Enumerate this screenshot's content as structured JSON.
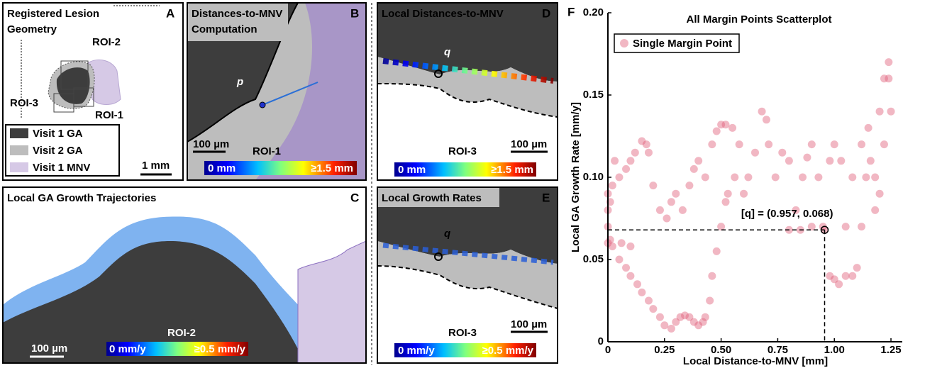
{
  "panels": {
    "a": {
      "letter": "A",
      "title_lines": [
        "Registered Lesion",
        "Geometry"
      ],
      "roi_labels": [
        "ROI-2",
        "ROI-3",
        "ROI-1"
      ],
      "legend": [
        "Visit 1 GA",
        "Visit 2 GA",
        "Visit 1 MNV"
      ],
      "scale": "1 mm"
    },
    "b": {
      "letter": "B",
      "title_lines": [
        "Distances-to-MNV",
        "Computation"
      ],
      "point": "p",
      "scale": "100 µm",
      "roi": "ROI-1",
      "colorbar": [
        "0 mm",
        "≥1.5 mm"
      ]
    },
    "c": {
      "letter": "C",
      "title": "Local GA Growth Trajectories",
      "roi": "ROI-2",
      "scale": "100 µm",
      "colorbar": [
        "0 mm/y",
        "≥0.5 mm/y"
      ]
    },
    "d": {
      "letter": "D",
      "title": "Local Distances-to-MNV",
      "point": "q",
      "scale": "100 µm",
      "roi": "ROI-3",
      "colorbar": [
        "0 mm",
        "≥1.5 mm"
      ]
    },
    "e": {
      "letter": "E",
      "title": "Local Growth Rates",
      "point": "q",
      "scale": "100 µm",
      "roi": "ROI-3",
      "colorbar": [
        "0 mm/y",
        "≥0.5 mm/y"
      ]
    },
    "f": {
      "letter": "F"
    }
  },
  "chart_data": {
    "type": "scatter",
    "title": "All Margin Points Scatterplot",
    "x_label": "Local Distance-to-MNV [mm]",
    "y_label": "Local GA Growth Rate [mm/y]",
    "xlim": [
      0,
      1.3
    ],
    "ylim": [
      0,
      0.2
    ],
    "xticks": [
      0,
      0.25,
      {
        "value": 0.5,
        "label": "0.50"
      },
      0.75,
      {
        "value": 1,
        "label": "1.00"
      },
      1.25
    ],
    "yticks": [
      0,
      0.05,
      {
        "value": 0.1,
        "label": "0.10"
      },
      0.15,
      {
        "value": 0.2,
        "label": "0.20"
      }
    ],
    "legend_position": "upper left",
    "x": [
      0.0,
      0.01,
      0.02,
      0.05,
      0.08,
      0.1,
      0.13,
      0.15,
      0.18,
      0.2,
      0.23,
      0.25,
      0.28,
      0.3,
      0.32,
      0.34,
      0.36,
      0.38,
      0.4,
      0.42,
      0.43,
      0.45,
      0.46,
      0.48,
      0.5,
      0.52,
      0.53,
      0.56,
      0.6,
      0.0,
      0.02,
      0.05,
      0.08,
      0.1,
      0.12,
      0.15,
      0.17,
      0.18,
      0.2,
      0.23,
      0.26,
      0.28,
      0.3,
      0.33,
      0.36,
      0.38,
      0.4,
      0.43,
      0.46,
      0.48,
      0.5,
      0.52,
      0.55,
      0.58,
      0.62,
      0.65,
      0.68,
      0.7,
      0.71,
      0.74,
      0.77,
      0.8,
      0.83,
      0.86,
      0.88,
      0.9,
      0.93,
      0.95,
      0.98,
      1.0,
      1.03,
      1.05,
      1.08,
      1.12,
      1.15,
      1.18,
      1.2,
      1.22,
      1.24,
      1.25,
      0.98,
      1.0,
      1.02,
      1.05,
      1.08,
      1.1,
      1.12,
      1.14,
      1.16,
      1.18,
      1.2,
      1.22,
      1.24,
      0.8,
      0.85,
      0.9,
      0.957,
      0.0,
      0.01,
      0.0,
      0.03,
      0.06,
      0.1
    ],
    "series": [
      {
        "name": "Single Margin Point",
        "color": "#e0607a",
        "values": [
          0.07,
          0.062,
          0.058,
          0.05,
          0.045,
          0.04,
          0.035,
          0.03,
          0.025,
          0.02,
          0.015,
          0.01,
          0.008,
          0.012,
          0.015,
          0.016,
          0.015,
          0.012,
          0.01,
          0.012,
          0.015,
          0.025,
          0.04,
          0.055,
          0.07,
          0.085,
          0.09,
          0.1,
          0.09,
          0.09,
          0.095,
          0.1,
          0.105,
          0.11,
          0.115,
          0.122,
          0.12,
          0.115,
          0.095,
          0.08,
          0.075,
          0.085,
          0.09,
          0.08,
          0.095,
          0.105,
          0.11,
          0.1,
          0.12,
          0.128,
          0.132,
          0.132,
          0.13,
          0.12,
          0.1,
          0.115,
          0.14,
          0.135,
          0.12,
          0.1,
          0.115,
          0.11,
          0.08,
          0.1,
          0.112,
          0.12,
          0.1,
          0.07,
          0.11,
          0.12,
          0.11,
          0.07,
          0.1,
          0.12,
          0.13,
          0.1,
          0.14,
          0.16,
          0.17,
          0.14,
          0.04,
          0.038,
          0.035,
          0.04,
          0.04,
          0.045,
          0.07,
          0.1,
          0.11,
          0.08,
          0.09,
          0.12,
          0.16,
          0.068,
          0.068,
          0.07,
          0.068,
          0.08,
          0.085,
          0.06,
          0.11,
          0.06,
          0.058
        ]
      }
    ],
    "highlight": {
      "x": 0.957,
      "y": 0.068,
      "label": "[q] = (0.957, 0.068)"
    }
  }
}
